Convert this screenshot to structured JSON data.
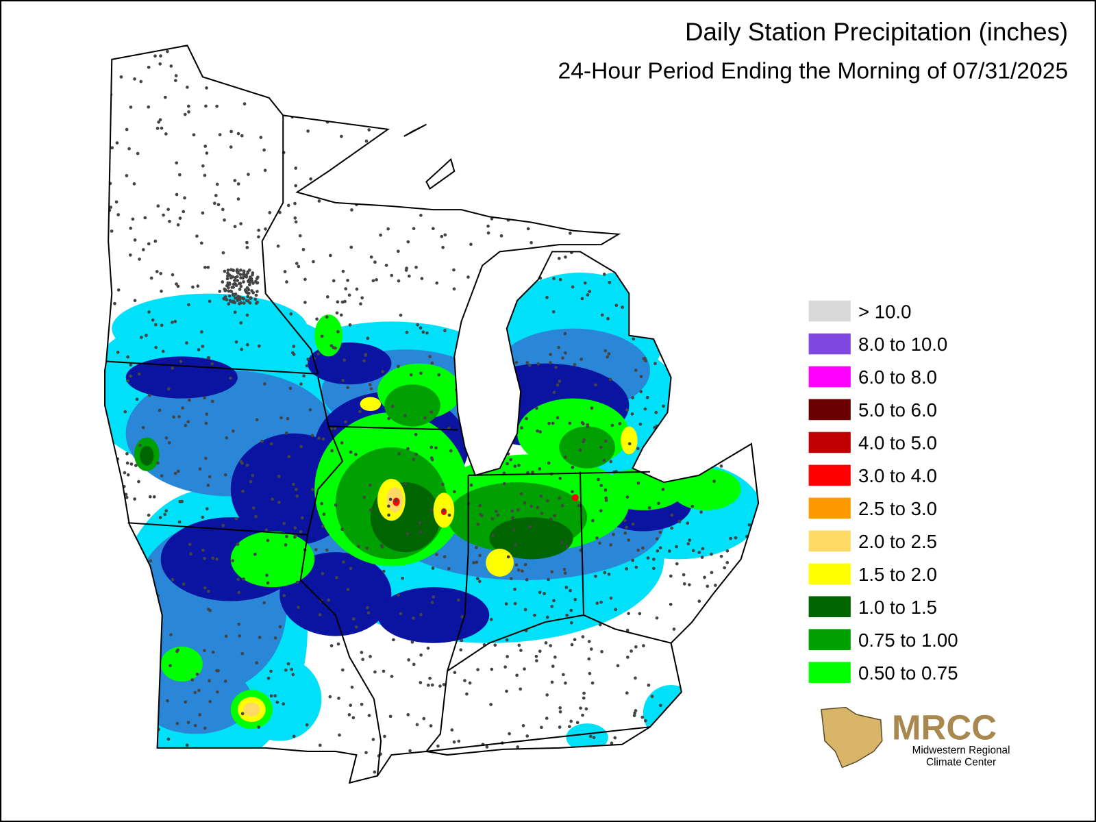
{
  "title": "Daily Station Precipitation (inches)",
  "subtitle": "24-Hour Period Ending the Morning of 07/31/2025",
  "legend": [
    {
      "label": "> 10.0",
      "color": "#d9d9d9"
    },
    {
      "label": "8.0 to 10.0",
      "color": "#7f48e0"
    },
    {
      "label": "6.0 to 8.0",
      "color": "#ff00ff"
    },
    {
      "label": "5.0 to 6.0",
      "color": "#6b0000"
    },
    {
      "label": "4.0 to 5.0",
      "color": "#c00000"
    },
    {
      "label": "3.0 to 4.0",
      "color": "#ff0000"
    },
    {
      "label": "2.5 to 3.0",
      "color": "#ff9900"
    },
    {
      "label": "2.0 to 2.5",
      "color": "#ffd966"
    },
    {
      "label": "1.5 to 2.0",
      "color": "#ffff00"
    },
    {
      "label": "1.0 to 1.5",
      "color": "#006400"
    },
    {
      "label": "0.75 to 1.00",
      "color": "#00a000"
    },
    {
      "label": "0.50 to 0.75",
      "color": "#00ff00"
    }
  ],
  "logo": {
    "name": "MRCC",
    "line1": "Midwestern Regional",
    "line2": "Climate Center"
  }
}
